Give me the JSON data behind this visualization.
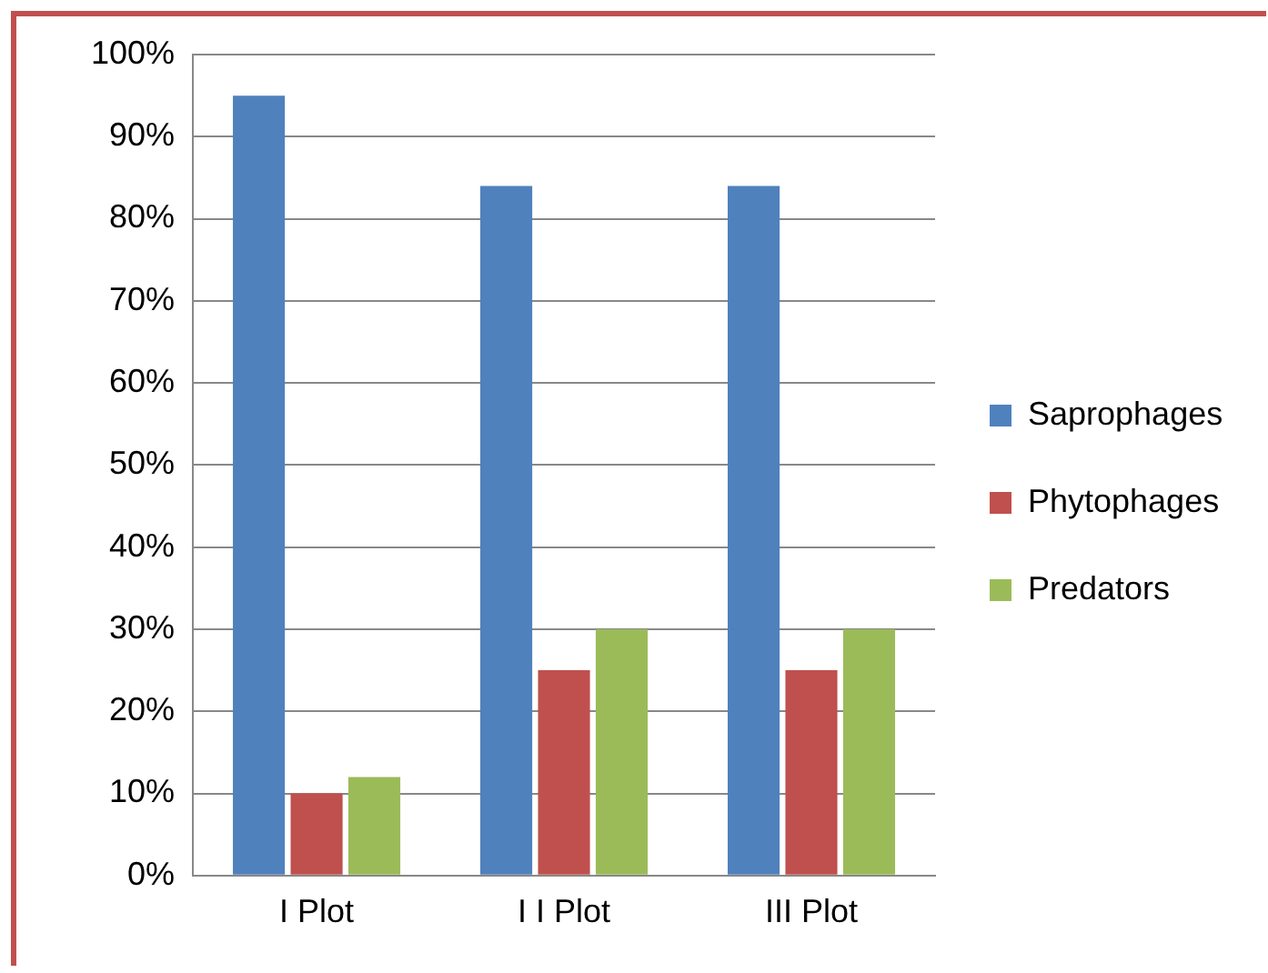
{
  "chart_data": {
    "type": "bar",
    "categories": [
      "I Plot",
      "I I Plot",
      "III Plot"
    ],
    "series": [
      {
        "name": "Saprophages",
        "color": "#4f81bd",
        "values": [
          95,
          84,
          84
        ]
      },
      {
        "name": "Phytophages",
        "color": "#c0504d",
        "values": [
          10,
          25,
          25
        ]
      },
      {
        "name": "Predators",
        "color": "#9bbb59",
        "values": [
          12,
          30,
          30
        ]
      }
    ],
    "ylim": [
      0,
      100
    ],
    "yticks": [
      {
        "value": 0,
        "label": "0%"
      },
      {
        "value": 10,
        "label": "10%"
      },
      {
        "value": 20,
        "label": "20%"
      },
      {
        "value": 30,
        "label": "30%"
      },
      {
        "value": 40,
        "label": "40%"
      },
      {
        "value": 50,
        "label": "50%"
      },
      {
        "value": 60,
        "label": "60%"
      },
      {
        "value": 70,
        "label": "70%"
      },
      {
        "value": 80,
        "label": "80%"
      },
      {
        "value": 90,
        "label": "90%"
      },
      {
        "value": 100,
        "label": "100%"
      }
    ],
    "grid": "y",
    "legend": "right"
  }
}
